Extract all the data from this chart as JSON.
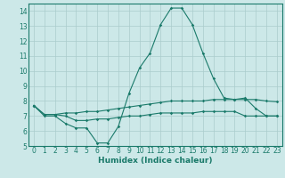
{
  "xlabel": "Humidex (Indice chaleur)",
  "background_color": "#cce8e8",
  "grid_color": "#aacccc",
  "line_color": "#1a7a6a",
  "xlim": [
    -0.5,
    23.5
  ],
  "ylim": [
    5,
    14.5
  ],
  "yticks": [
    5,
    6,
    7,
    8,
    9,
    10,
    11,
    12,
    13,
    14
  ],
  "xticks": [
    0,
    1,
    2,
    3,
    4,
    5,
    6,
    7,
    8,
    9,
    10,
    11,
    12,
    13,
    14,
    15,
    16,
    17,
    18,
    19,
    20,
    21,
    22,
    23
  ],
  "line1_x": [
    0,
    1,
    2,
    3,
    4,
    5,
    6,
    7,
    8,
    9,
    10,
    11,
    12,
    13,
    14,
    15,
    16,
    17,
    18,
    19,
    20,
    21,
    22,
    23
  ],
  "line1_y": [
    7.7,
    7.0,
    7.0,
    6.5,
    6.2,
    6.2,
    5.2,
    5.2,
    6.3,
    8.5,
    10.2,
    11.2,
    13.1,
    14.2,
    14.2,
    13.1,
    11.2,
    9.5,
    8.2,
    8.1,
    8.2,
    7.5,
    7.0,
    7.0
  ],
  "line2_x": [
    0,
    1,
    2,
    3,
    4,
    5,
    6,
    7,
    8,
    9,
    10,
    11,
    12,
    13,
    14,
    15,
    16,
    17,
    18,
    19,
    20,
    21,
    22,
    23
  ],
  "line2_y": [
    7.7,
    7.1,
    7.1,
    7.2,
    7.2,
    7.3,
    7.3,
    7.4,
    7.5,
    7.6,
    7.7,
    7.8,
    7.9,
    8.0,
    8.0,
    8.0,
    8.0,
    8.1,
    8.1,
    8.1,
    8.1,
    8.1,
    8.0,
    7.95
  ],
  "line3_x": [
    0,
    1,
    2,
    3,
    4,
    5,
    6,
    7,
    8,
    9,
    10,
    11,
    12,
    13,
    14,
    15,
    16,
    17,
    18,
    19,
    20,
    21,
    22,
    23
  ],
  "line3_y": [
    7.7,
    7.1,
    7.1,
    7.0,
    6.7,
    6.7,
    6.8,
    6.8,
    6.9,
    7.0,
    7.0,
    7.1,
    7.2,
    7.2,
    7.2,
    7.2,
    7.3,
    7.3,
    7.3,
    7.3,
    7.0,
    7.0,
    7.0,
    7.0
  ],
  "figsize": [
    3.2,
    2.0
  ],
  "dpi": 100
}
